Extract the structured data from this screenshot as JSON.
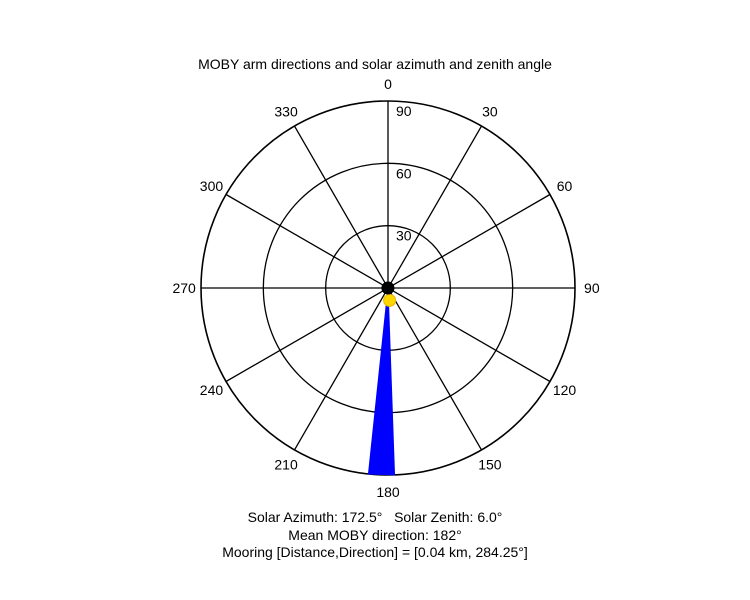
{
  "chart_data": {
    "type": "polar",
    "title": "MOBY arm directions and solar azimuth and zenith angle",
    "angular_direction": "clockwise",
    "zero_direction": "top",
    "angle_tick_labels": [
      "0",
      "30",
      "60",
      "90",
      "120",
      "150",
      "180",
      "210",
      "240",
      "270",
      "300",
      "330"
    ],
    "radial_range": [
      0,
      90
    ],
    "radial_tick_labels": [
      "30",
      "60",
      "90"
    ],
    "grid": true,
    "series": [
      {
        "kind": "filled-wedge",
        "color": "#0000ff",
        "azimuth_range_deg": [
          178,
          186
        ],
        "radius_range": [
          8,
          90
        ]
      },
      {
        "kind": "point",
        "color": "#ffd700",
        "azimuth_deg": 172.5,
        "zenith_deg": 6.0
      },
      {
        "kind": "point",
        "color": "#000000",
        "azimuth_deg": 284.25,
        "zenith_deg": 0.04
      }
    ],
    "annotations": [
      "Solar Azimuth: 172.5°   Solar Zenith: 6.0°",
      "Mean MOBY direction: 182°",
      "Mooring [Distance,Direction] = [0.04 km, 284.25°]"
    ]
  }
}
